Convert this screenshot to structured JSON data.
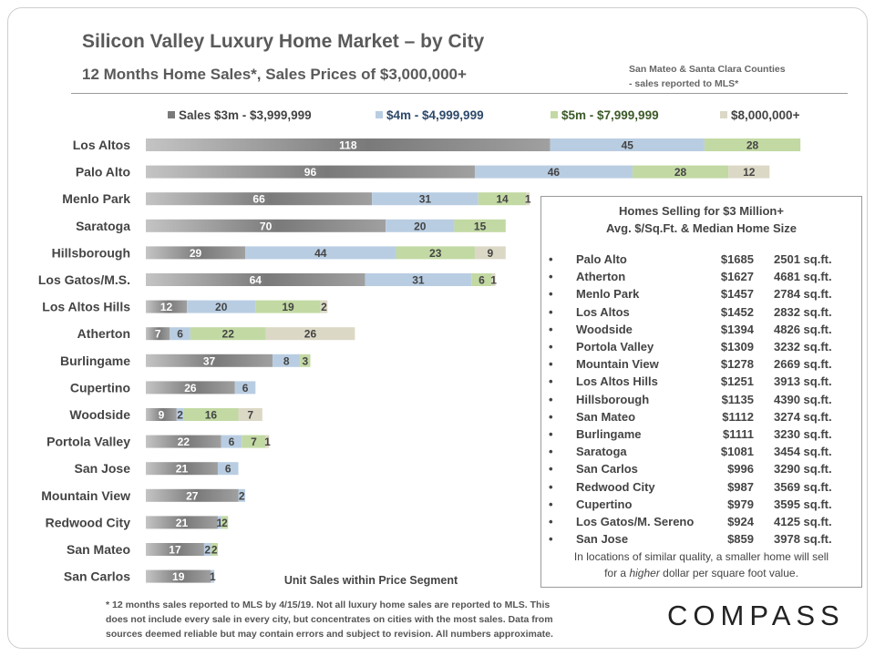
{
  "header": {
    "title": "Silicon Valley Luxury Home Market – by City",
    "subtitle": "12 Months Home Sales*, Sales Prices of $3,000,000+",
    "source_line1": "San Mateo & Santa Clara Counties",
    "source_line2": "- sales reported to MLS*"
  },
  "colors": {
    "seg1": "#8a8a8a",
    "seg2": "#b9cde2",
    "seg3": "#c2d9a3",
    "seg4": "#dcd8c6"
  },
  "chart_data": {
    "type": "bar",
    "orientation": "horizontal",
    "stacked": true,
    "categories": [
      "Los Altos",
      "Palo Alto",
      "Menlo Park",
      "Saratoga",
      "Hillsborough",
      "Los Gatos/M.S.",
      "Los Altos Hills",
      "Atherton",
      "Burlingame",
      "Cupertino",
      "Woodside",
      "Portola Valley",
      "San Jose",
      "Mountain View",
      "Redwood City",
      "San Mateo",
      "San Carlos"
    ],
    "series": [
      {
        "name": "Sales $3m - $3,999,999",
        "values": [
          118,
          96,
          66,
          70,
          29,
          64,
          12,
          7,
          37,
          26,
          9,
          22,
          21,
          27,
          21,
          17,
          19
        ]
      },
      {
        "name": "$4m - $4,999,999",
        "values": [
          45,
          46,
          31,
          20,
          44,
          31,
          20,
          6,
          8,
          6,
          2,
          6,
          6,
          2,
          1,
          2,
          1
        ]
      },
      {
        "name": "$5m - $7,999,999",
        "values": [
          28,
          28,
          14,
          15,
          23,
          6,
          19,
          22,
          3,
          0,
          16,
          7,
          0,
          0,
          2,
          2,
          0
        ]
      },
      {
        "name": "$8,000,000+",
        "values": [
          0,
          12,
          1,
          0,
          9,
          1,
          2,
          26,
          0,
          0,
          7,
          1,
          0,
          0,
          0,
          0,
          0
        ]
      }
    ],
    "xlabel": "Unit Sales within Price Segment",
    "legend_position": "top",
    "grid": false
  },
  "inset": {
    "title_line1": "Homes Selling for $3 Million+",
    "title_line2": "Avg. $/Sq.Ft. & Median Home Size",
    "bullet": "•",
    "rows": [
      {
        "city": "Palo Alto",
        "price": "$1685",
        "size": "2501 sq.ft."
      },
      {
        "city": "Atherton",
        "price": "$1627",
        "size": "4681 sq.ft."
      },
      {
        "city": "Menlo Park",
        "price": "$1457",
        "size": "2784 sq.ft."
      },
      {
        "city": "Los Altos",
        "price": "$1452",
        "size": "2832 sq.ft."
      },
      {
        "city": "Woodside",
        "price": "$1394",
        "size": "4826 sq.ft."
      },
      {
        "city": "Portola Valley",
        "price": "$1309",
        "size": "3232 sq.ft."
      },
      {
        "city": "Mountain View",
        "price": "$1278",
        "size": "2669 sq.ft."
      },
      {
        "city": "Los Altos Hills",
        "price": "$1251",
        "size": "3913 sq.ft."
      },
      {
        "city": "Hillsborough",
        "price": "$1135",
        "size": "4390 sq.ft."
      },
      {
        "city": "San Mateo",
        "price": "$1112",
        "size": "3274 sq.ft."
      },
      {
        "city": "Burlingame",
        "price": "$1111",
        "size": "3230 sq.ft."
      },
      {
        "city": "Saratoga",
        "price": "$1081",
        "size": "3454 sq.ft."
      },
      {
        "city": "San Carlos",
        "price": "$996",
        "size": "3290 sq.ft."
      },
      {
        "city": "Redwood City",
        "price": "$987",
        "size": "3569 sq.ft."
      },
      {
        "city": "Cupertino",
        "price": "$979",
        "size": "3595 sq.ft."
      },
      {
        "city": "Los Gatos/M. Sereno",
        "price": "$924",
        "size": "4125 sq.ft."
      },
      {
        "city": "San Jose",
        "price": "$859",
        "size": "3978 sq.ft."
      }
    ],
    "note_line1": "In locations of similar quality, a smaller home will sell",
    "note_line2_a": "for a ",
    "note_line2_em": "higher",
    "note_line2_b": " dollar per square foot value."
  },
  "footnote": {
    "line1": "* 12 months sales reported to MLS by 4/15/19. Not all luxury home sales are reported to MLS. This",
    "line2": "does not include every sale in every city, but concentrates on cities with the most sales. Data from",
    "line3": "sources deemed reliable but may contain errors and subject to revision. All numbers approximate."
  },
  "brand": "COMPASS"
}
